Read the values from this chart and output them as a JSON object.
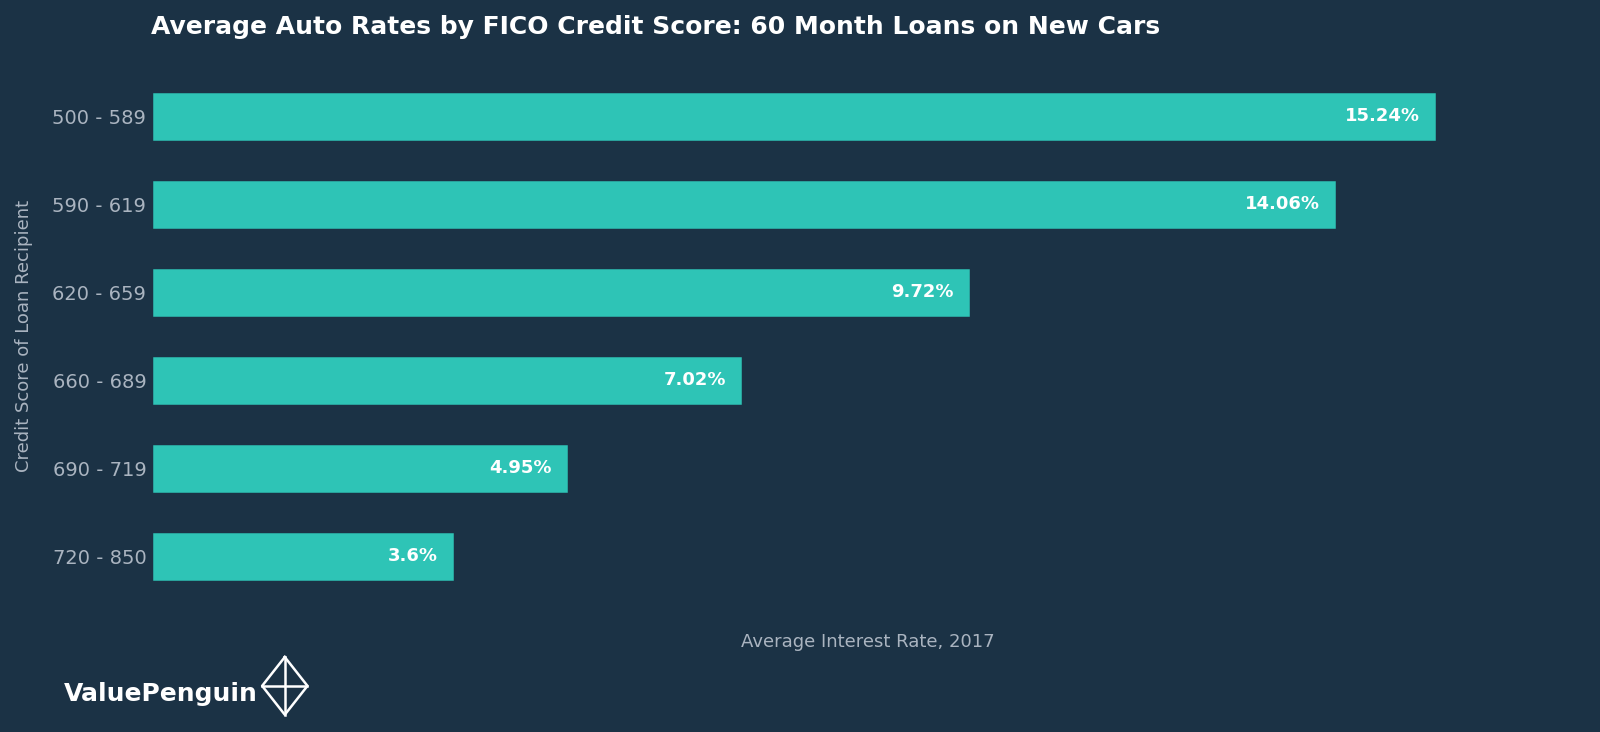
{
  "title": "Average Auto Rates by FICO Credit Score: 60 Month Loans on New Cars",
  "xlabel": "Average Interest Rate, 2017",
  "ylabel": "Credit Score of Loan Recipient",
  "categories": [
    "500 - 589",
    "590 - 619",
    "620 - 659",
    "660 - 689",
    "690 - 719",
    "720 - 850"
  ],
  "values": [
    15.24,
    14.06,
    9.72,
    7.02,
    4.95,
    3.6
  ],
  "labels": [
    "15.24%",
    "14.06%",
    "9.72%",
    "7.02%",
    "4.95%",
    "3.6%"
  ],
  "bar_color": "#2ec4b6",
  "background_color": "#1b3245",
  "text_color": "#ffffff",
  "tick_label_color": "#aab4c0",
  "xlabel_color": "#aab4c0",
  "ylabel_color": "#aab4c0",
  "title_color": "#ffffff",
  "title_fontsize": 18,
  "label_fontsize": 13,
  "tick_fontsize": 14,
  "xlabel_fontsize": 13,
  "ylabel_fontsize": 13,
  "brand": "ValuePenguin",
  "brand_fontsize": 18,
  "xlim": [
    0,
    17
  ],
  "bar_height": 0.58
}
